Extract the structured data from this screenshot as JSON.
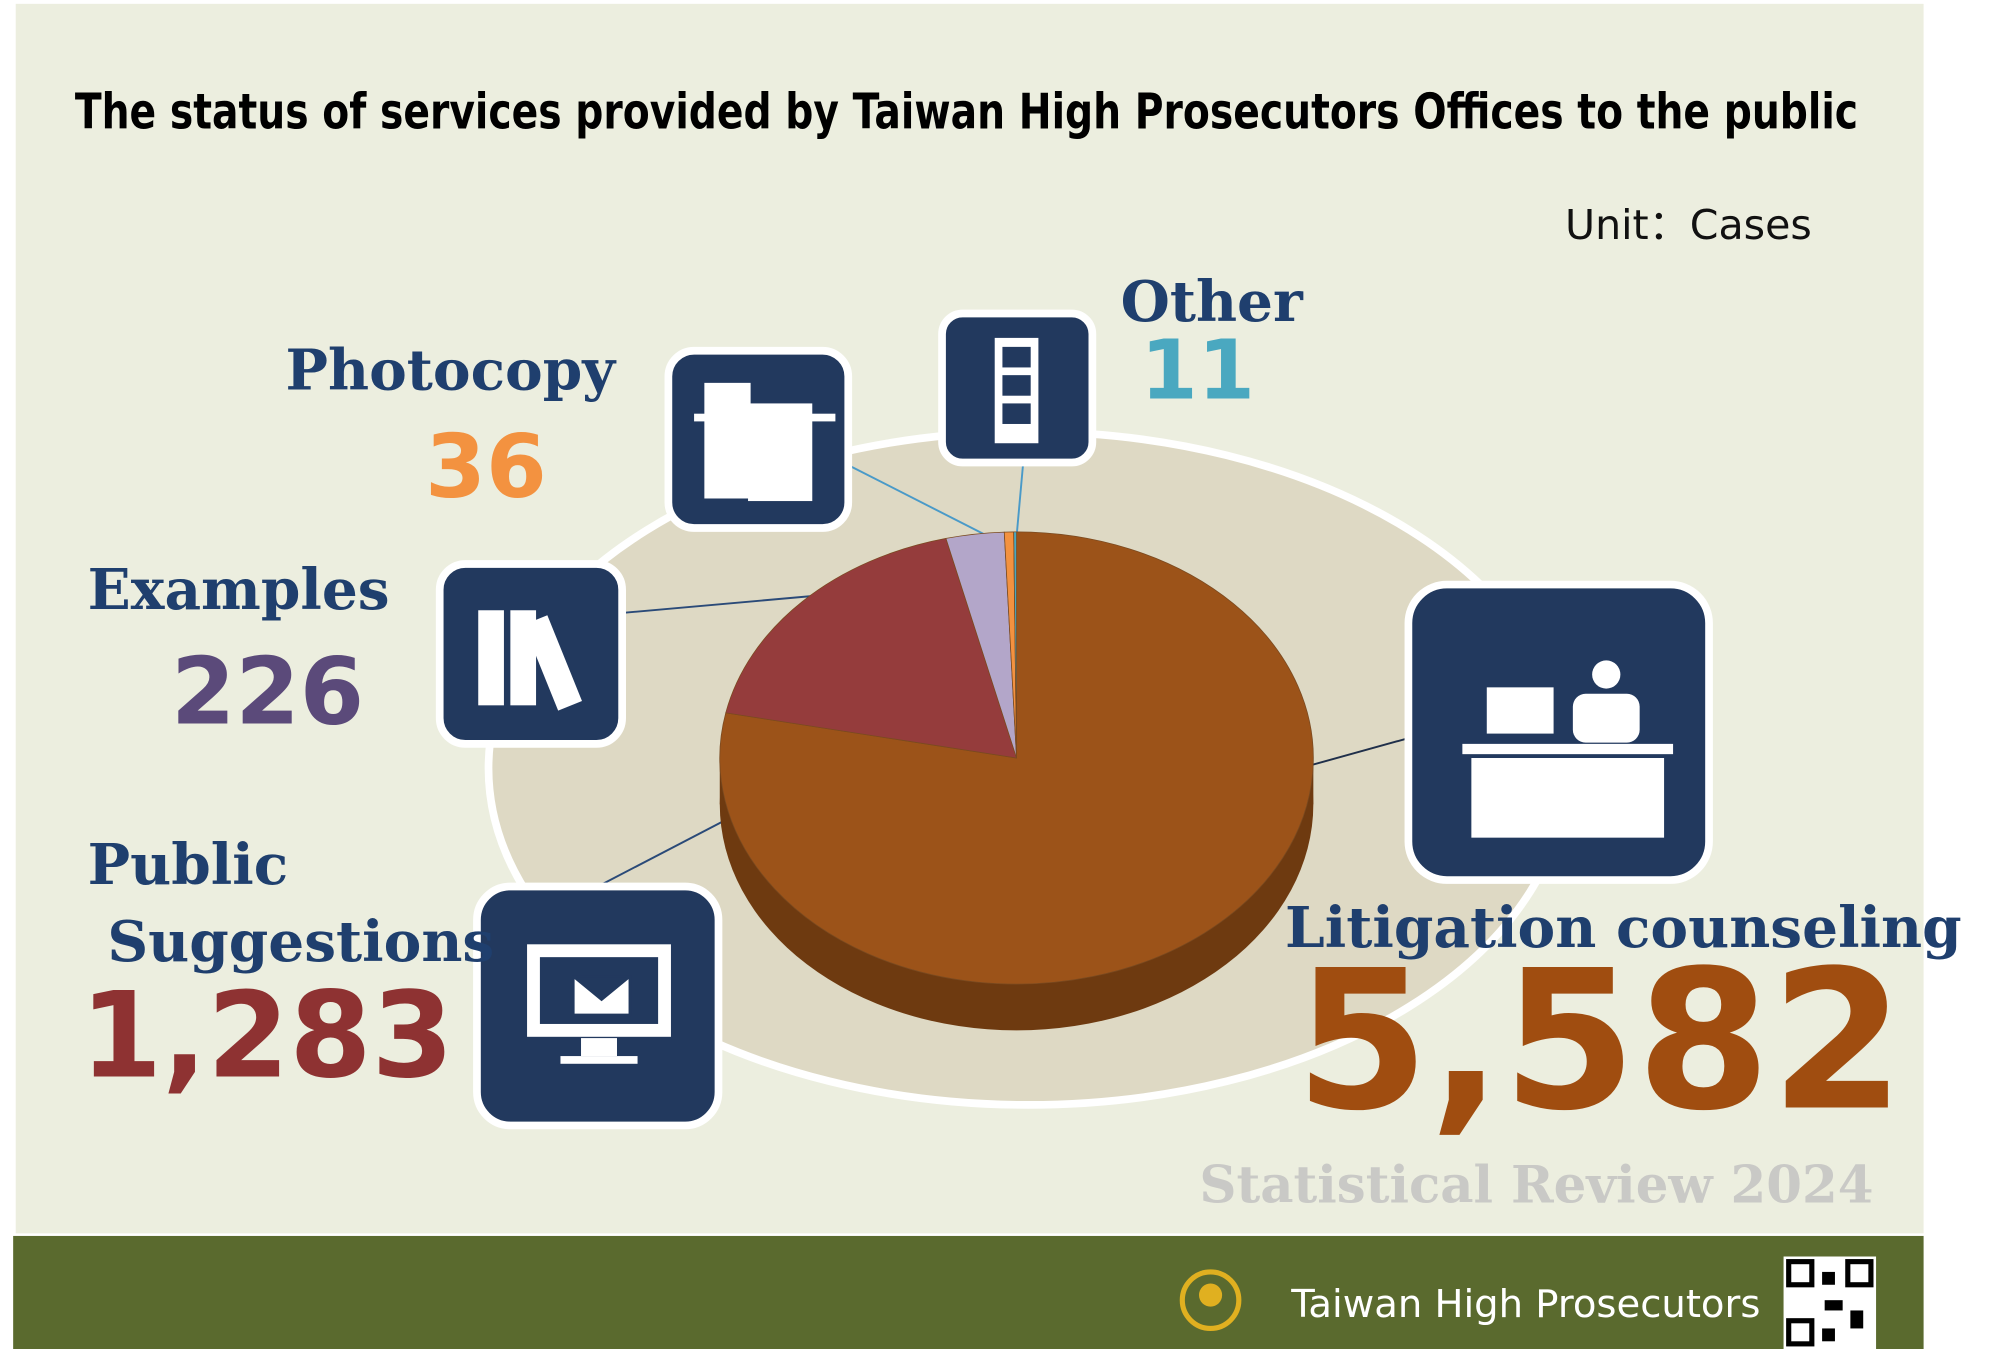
{
  "chart_data": {
    "type": "pie",
    "title": "The status of services provided by Taiwan High Prosecutors Offices to the public",
    "unit": "Unit：Cases",
    "categories": [
      "Litigation counseling",
      "Public Suggestions",
      "Examples",
      "Photocopy",
      "Other"
    ],
    "values": [
      5582,
      1283,
      226,
      36,
      11
    ],
    "value_labels": [
      "5,582",
      "1,283",
      "226",
      "36",
      "11"
    ],
    "colors": [
      "#9c5319",
      "#953c3c",
      "#b3a6c9",
      "#f39240",
      "#4aa8c0"
    ],
    "label_colors": [
      "#a04d10",
      "#8e3232",
      "#5b4a7a",
      "#f39240",
      "#4aa8c0"
    ]
  },
  "footer": {
    "review": "Statistical Review 2024",
    "organization": "Taiwan High Prosecutors"
  }
}
